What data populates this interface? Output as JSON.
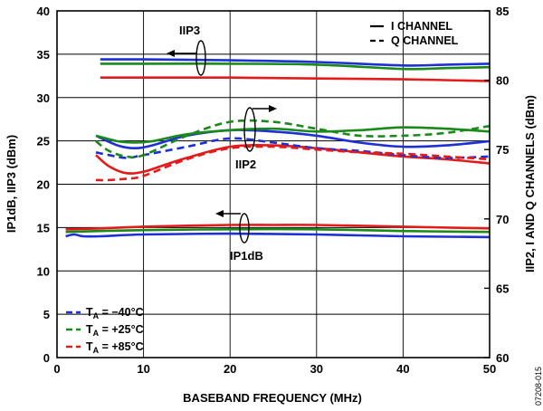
{
  "chart_data": {
    "type": "line",
    "xlabel": "BASEBAND FREQUENCY (MHz)",
    "ylabel_left": "IP1dB, IIP3 (dBm)",
    "ylabel_right": "IIP2, I AND Q CHANNELS (dBm)",
    "xlim": [
      0,
      50
    ],
    "ylim_left": [
      0,
      40
    ],
    "ylim_right": [
      60,
      85
    ],
    "x_ticks": [
      "0",
      "10",
      "20",
      "30",
      "40",
      "50"
    ],
    "y_left_ticks": [
      "0",
      "5",
      "10",
      "15",
      "20",
      "25",
      "30",
      "35",
      "40"
    ],
    "y_right_ticks": [
      "60",
      "65",
      "70",
      "75",
      "80",
      "85"
    ],
    "grid": true,
    "legend_channel": [
      {
        "label": "I CHANNEL",
        "style": "solid"
      },
      {
        "label": "Q CHANNEL",
        "style": "dashed"
      }
    ],
    "legend_temp": [
      {
        "prefix": "T",
        "sub": "A",
        "suffix": " = −40°C",
        "color": "#1f2fd6"
      },
      {
        "prefix": "T",
        "sub": "A",
        "suffix": " = +25°C",
        "color": "#1a8a1a"
      },
      {
        "prefix": "T",
        "sub": "A",
        "suffix": " = +85°C",
        "color": "#e21b1b"
      }
    ],
    "annotations": {
      "iip3": "IIP3",
      "iip2": "IIP2",
      "ip1db": "IP1dB"
    },
    "figure_id": "07208-015",
    "series": [
      {
        "name": "IIP3 T_A = −40°C (I CHANNEL)",
        "axis": "left",
        "color": "#1f2fd6",
        "dash": "solid",
        "x": [
          5,
          10,
          20,
          30,
          40,
          45,
          50
        ],
        "y": [
          34.4,
          34.4,
          34.3,
          34.1,
          33.7,
          33.8,
          33.9
        ]
      },
      {
        "name": "IIP3 T_A = +25°C (I CHANNEL)",
        "axis": "left",
        "color": "#1a8a1a",
        "dash": "solid",
        "x": [
          5,
          10,
          20,
          30,
          40,
          45,
          50
        ],
        "y": [
          33.9,
          33.9,
          33.9,
          33.8,
          33.3,
          33.4,
          33.5
        ]
      },
      {
        "name": "IIP3 T_A = +85°C (I CHANNEL)",
        "axis": "left",
        "color": "#e21b1b",
        "dash": "solid",
        "x": [
          5,
          10,
          20,
          30,
          40,
          50
        ],
        "y": [
          32.3,
          32.3,
          32.3,
          32.2,
          32.1,
          31.9
        ]
      },
      {
        "name": "IP1dB T_A = −40°C (I CHANNEL)",
        "axis": "left",
        "color": "#1f2fd6",
        "dash": "solid",
        "x": [
          1,
          2,
          3,
          5,
          10,
          20,
          30,
          40,
          50
        ],
        "y": [
          14.0,
          14.2,
          14.0,
          14.0,
          14.2,
          14.3,
          14.2,
          14.0,
          13.9
        ]
      },
      {
        "name": "IP1dB T_A = +25°C (I CHANNEL)",
        "axis": "left",
        "color": "#1a8a1a",
        "dash": "solid",
        "x": [
          1,
          5,
          10,
          20,
          30,
          40,
          50
        ],
        "y": [
          14.5,
          14.6,
          14.7,
          14.8,
          14.8,
          14.6,
          14.5
        ]
      },
      {
        "name": "IP1dB T_A = +85°C (I CHANNEL)",
        "axis": "left",
        "color": "#e21b1b",
        "dash": "solid",
        "x": [
          1,
          5,
          10,
          20,
          25,
          30,
          40,
          50
        ],
        "y": [
          14.8,
          14.9,
          15.1,
          15.3,
          15.3,
          15.3,
          15.1,
          14.9
        ]
      },
      {
        "name": "IIP2 T_A = −40°C (I CHANNEL)",
        "axis": "right",
        "color": "#1f2fd6",
        "dash": "solid",
        "x": [
          4.5,
          7,
          9,
          11,
          15,
          20,
          25,
          30,
          35,
          40,
          45,
          50
        ],
        "y": [
          76.0,
          75.3,
          75.1,
          75.3,
          76.0,
          76.4,
          76.3,
          76.0,
          75.5,
          75.2,
          75.3,
          75.6
        ]
      },
      {
        "name": "IIP2 T_A = +25°C (I CHANNEL)",
        "axis": "right",
        "color": "#1a8a1a",
        "dash": "solid",
        "x": [
          4.5,
          7,
          9,
          11,
          15,
          20,
          25,
          30,
          35,
          40,
          45,
          50
        ],
        "y": [
          76.0,
          75.6,
          75.5,
          75.6,
          76.1,
          76.4,
          76.5,
          76.3,
          76.4,
          76.6,
          76.5,
          76.3
        ]
      },
      {
        "name": "IIP2 T_A = +85°C (I CHANNEL)",
        "axis": "right",
        "color": "#e21b1b",
        "dash": "solid",
        "x": [
          4.5,
          6,
          8,
          10,
          12,
          15,
          20,
          25,
          30,
          35,
          40,
          45,
          50
        ],
        "y": [
          74.6,
          73.8,
          73.3,
          73.4,
          73.8,
          74.4,
          75.2,
          75.3,
          75.1,
          74.8,
          74.5,
          74.3,
          74.0
        ]
      },
      {
        "name": "IIP2 T_A = −40°C (Q CHANNEL)",
        "axis": "right",
        "color": "#1f2fd6",
        "dash": "dashed",
        "x": [
          4.5,
          6,
          8,
          10,
          15,
          20,
          25,
          30,
          35,
          40,
          45,
          50
        ],
        "y": [
          74.8,
          74.6,
          74.4,
          74.6,
          75.2,
          75.8,
          75.5,
          75.1,
          74.9,
          74.6,
          74.4,
          74.5
        ]
      },
      {
        "name": "IIP2 T_A = +25°C (Q CHANNEL)",
        "axis": "right",
        "color": "#1a8a1a",
        "dash": "dashed",
        "x": [
          4.5,
          6,
          8,
          10,
          15,
          20,
          25,
          30,
          35,
          40,
          45,
          50
        ],
        "y": [
          75.6,
          74.9,
          74.5,
          74.6,
          76.0,
          77.0,
          77.0,
          76.5,
          76.0,
          76.0,
          76.2,
          76.7
        ]
      },
      {
        "name": "IIP2 T_A = +85°C (Q CHANNEL)",
        "axis": "right",
        "color": "#e21b1b",
        "dash": "dashed",
        "x": [
          4.5,
          6,
          8,
          10,
          15,
          20,
          25,
          30,
          35,
          40,
          45,
          50
        ],
        "y": [
          72.8,
          72.8,
          72.9,
          73.1,
          74.3,
          75.1,
          75.2,
          75.0,
          74.8,
          74.7,
          74.5,
          74.3
        ]
      }
    ]
  }
}
